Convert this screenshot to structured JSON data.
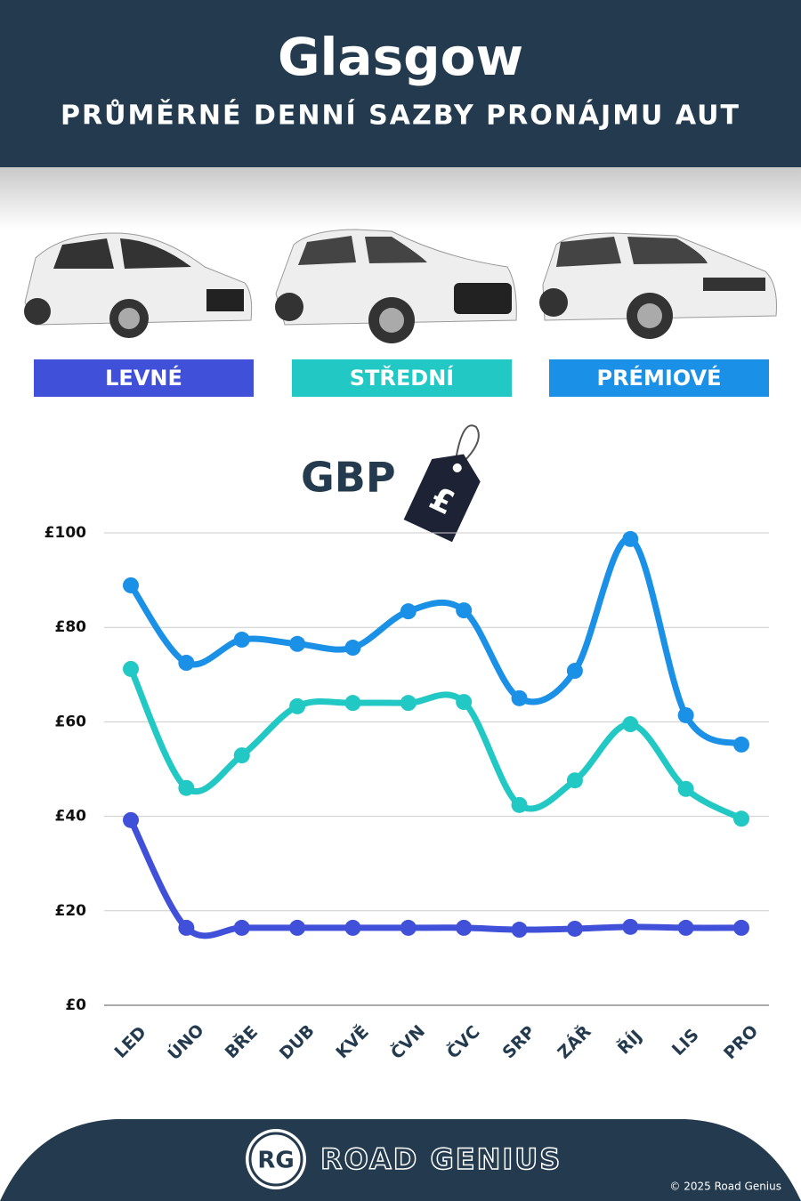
{
  "chart_data": {
    "type": "line",
    "title": "Glasgow",
    "subtitle": "PRŮMĚRNÉ DENNÍ SAZBY PRONÁJMU AUT",
    "unit_label": "GBP",
    "tag_symbol": "£",
    "categories": [
      "LED",
      "ÚNO",
      "BŘE",
      "DUB",
      "KVĚ",
      "ČVN",
      "ČVC",
      "SRP",
      "ZÁŘ",
      "ŘÍJ",
      "LIS",
      "PRO"
    ],
    "series": [
      {
        "name": "LEVNÉ",
        "color": "#4150d8",
        "values": [
          39.2,
          16.4,
          16.4,
          16.4,
          16.4,
          16.4,
          16.4,
          16.0,
          16.2,
          16.6,
          16.4,
          16.4
        ]
      },
      {
        "name": "STŘEDNÍ",
        "color": "#22c8c3",
        "values": [
          71.2,
          46.0,
          52.9,
          63.3,
          64.0,
          64.0,
          64.2,
          42.4,
          47.6,
          59.5,
          45.8,
          39.5
        ]
      },
      {
        "name": "PRÉMIOVÉ",
        "color": "#1a90e6",
        "values": [
          88.9,
          72.5,
          77.4,
          76.5,
          75.7,
          83.4,
          83.6,
          65.0,
          70.8,
          98.7,
          61.4,
          55.2
        ]
      }
    ],
    "ylim": [
      0,
      100
    ],
    "yticks": [
      {
        "value": 0,
        "label": "£0"
      },
      {
        "value": 20,
        "label": "£20"
      },
      {
        "value": 40,
        "label": "£40"
      },
      {
        "value": 60,
        "label": "£60"
      },
      {
        "value": 80,
        "label": "£80"
      },
      {
        "value": 100,
        "label": "£100"
      }
    ],
    "grid": true
  },
  "footer": {
    "logo": "RG",
    "brand": "ROAD GENIUS",
    "copyright": "© 2025 Road Genius"
  }
}
